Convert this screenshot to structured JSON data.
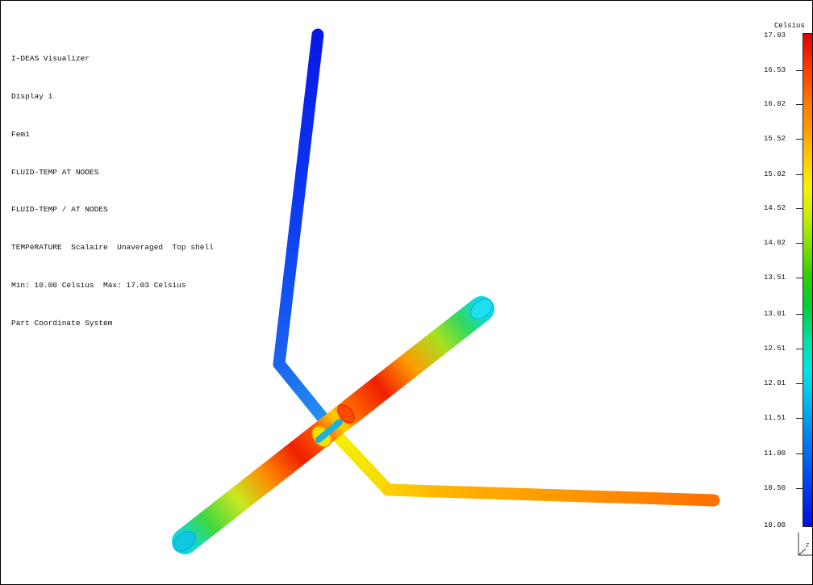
{
  "info": {
    "lines": [
      "I-DEAS Visualizer",
      "Display 1",
      "Fem1",
      "FLUID-TEMP AT NODES",
      "FLUID-TEMP / AT NODES",
      "TEMPéRATURE  Scalaire  Unaveraged  Top shell",
      "Min: 10.00 Celsius  Max: 17.03 Celsius",
      "Part Coordinate System"
    ]
  },
  "legend": {
    "unit": "Celsius",
    "labels": [
      "17.03",
      "16.53",
      "16.02",
      "15.52",
      "15.02",
      "14.52",
      "14.02",
      "13.51",
      "13.01",
      "12.51",
      "12.01",
      "11.51",
      "11.00",
      "10.50",
      "10.00"
    ],
    "min": 10.0,
    "max": 17.03,
    "colors": {
      "max": "#e00000",
      "mid": "#30d000",
      "min": "#0010e0"
    }
  },
  "triad": {
    "axis_label": "Z",
    "icon": "coordinate-triad-icon"
  }
}
